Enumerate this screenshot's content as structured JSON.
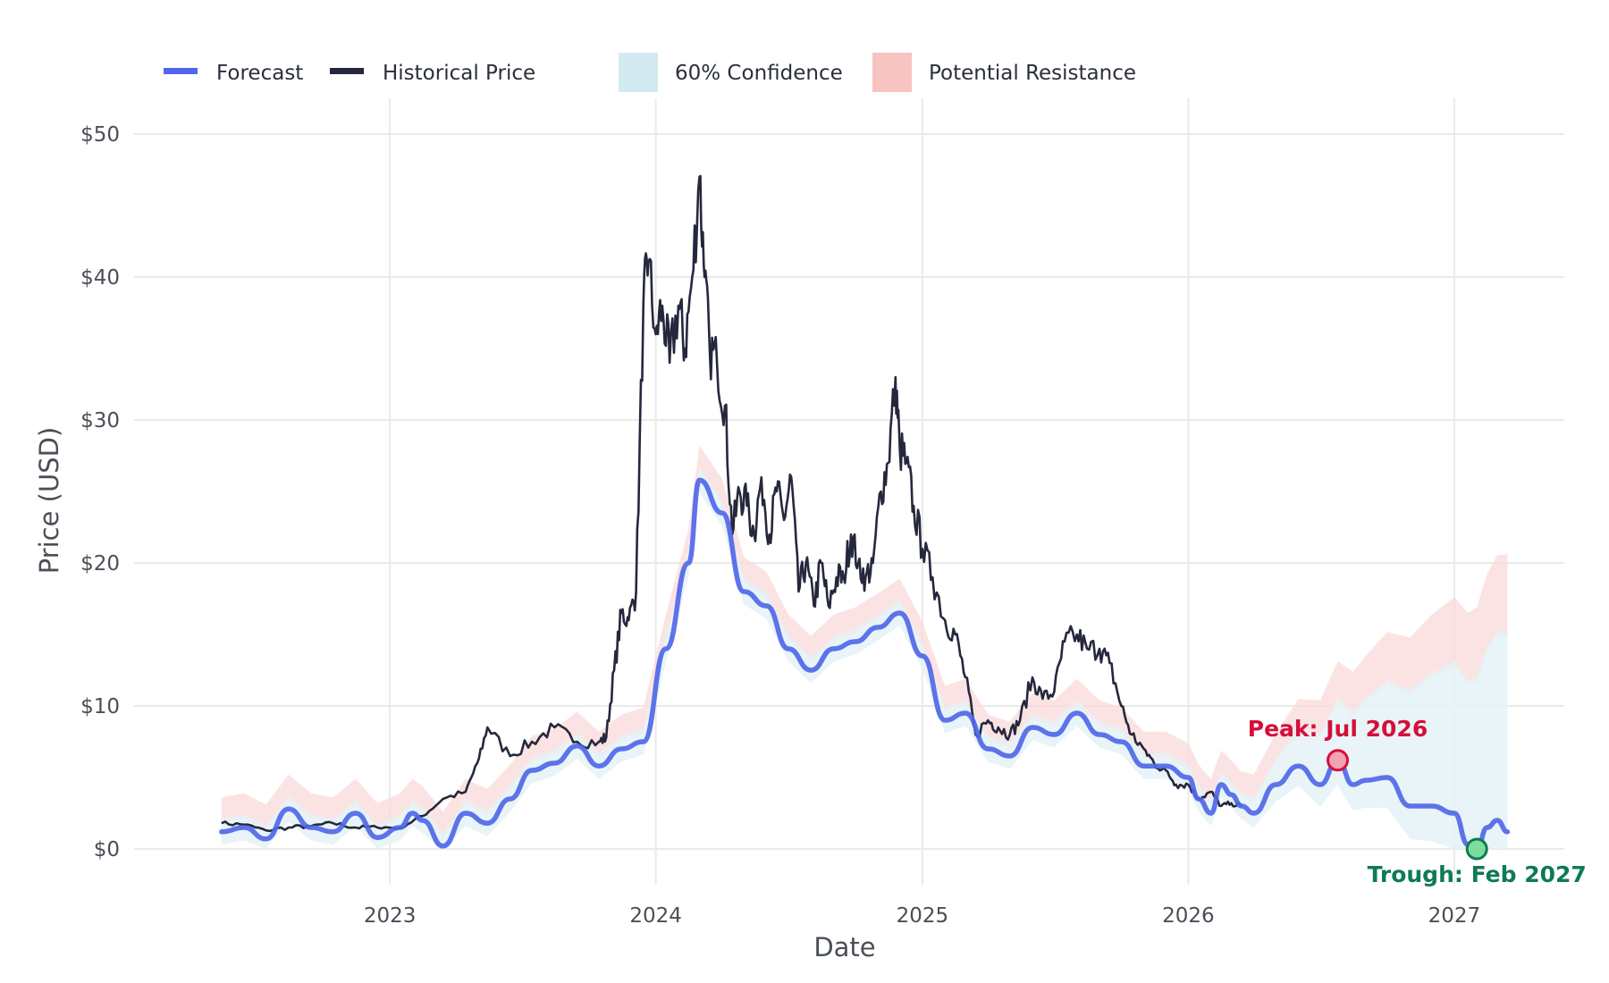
{
  "chart_data": {
    "type": "line",
    "title": "",
    "xlabel": "Date",
    "ylabel": "Price (USD)",
    "x_range": [
      "2022-01-15",
      "2027-06-01"
    ],
    "ylim": [
      -2.5,
      52.5
    ],
    "y_ticks": [
      0,
      10,
      20,
      30,
      40,
      50
    ],
    "y_tick_labels": [
      "$0",
      "$10",
      "$20",
      "$30",
      "$40",
      "$50"
    ],
    "x_ticks": [
      "2023-01-01",
      "2024-01-01",
      "2025-01-01",
      "2026-01-01",
      "2027-01-01"
    ],
    "x_tick_labels": [
      "2023",
      "2024",
      "2025",
      "2026",
      "2027"
    ],
    "grid": true,
    "legend_position": "top-left",
    "legend": [
      {
        "label": "Forecast",
        "kind": "line",
        "color": "#4f67e8"
      },
      {
        "label": "Historical Price",
        "kind": "line",
        "color": "#25283d"
      },
      {
        "label": "60% Confidence",
        "kind": "band",
        "color": "#d3e9f0"
      },
      {
        "label": "Potential Resistance",
        "kind": "band",
        "color": "#f7c4c2"
      }
    ],
    "colors": {
      "forecast": "#4f67e8",
      "historical": "#25283d",
      "confidence": "#e4f2f6",
      "resistance": "#fbdad9",
      "grid": "#eaeaea",
      "peak": "#d40f3a",
      "trough": "#0e7b53"
    },
    "series": [
      {
        "name": "Historical Price",
        "x": [
          "2022-05-15",
          "2022-06-15",
          "2022-07-15",
          "2022-08-15",
          "2022-09-15",
          "2022-10-15",
          "2022-11-15",
          "2022-12-15",
          "2023-01-15",
          "2023-02-15",
          "2023-03-15",
          "2023-04-15",
          "2023-05-01",
          "2023-05-15",
          "2023-06-15",
          "2023-07-15",
          "2023-08-15",
          "2023-09-15",
          "2023-10-15",
          "2023-10-25",
          "2023-11-05",
          "2023-11-15",
          "2023-11-25",
          "2023-12-05",
          "2023-12-15",
          "2023-12-22",
          "2024-01-01",
          "2024-01-10",
          "2024-01-20",
          "2024-02-01",
          "2024-02-10",
          "2024-02-20",
          "2024-03-01",
          "2024-03-08",
          "2024-03-15",
          "2024-03-25",
          "2024-04-05",
          "2024-04-15",
          "2024-04-25",
          "2024-05-05",
          "2024-05-15",
          "2024-05-25",
          "2024-06-05",
          "2024-06-15",
          "2024-06-25",
          "2024-07-05",
          "2024-07-15",
          "2024-07-25",
          "2024-08-05",
          "2024-08-15",
          "2024-08-25",
          "2024-09-05",
          "2024-09-15",
          "2024-09-25",
          "2024-10-05",
          "2024-10-15",
          "2024-10-25",
          "2024-11-05",
          "2024-11-15",
          "2024-11-25",
          "2024-12-01",
          "2024-12-10",
          "2024-12-20",
          "2025-01-01",
          "2025-01-15",
          "2025-02-01",
          "2025-02-15",
          "2025-03-01",
          "2025-03-15",
          "2025-04-01",
          "2025-04-15",
          "2025-05-01",
          "2025-05-15",
          "2025-06-01",
          "2025-06-15",
          "2025-07-01",
          "2025-07-15",
          "2025-08-01",
          "2025-08-15",
          "2025-09-01",
          "2025-09-15",
          "2025-10-01",
          "2025-10-15",
          "2025-11-01",
          "2025-11-15",
          "2025-12-01",
          "2025-12-15",
          "2026-01-01",
          "2026-01-15",
          "2026-02-01",
          "2026-02-15",
          "2026-03-01",
          "2026-03-15"
        ],
        "values": [
          1.8,
          1.7,
          1.3,
          1.5,
          1.6,
          1.8,
          1.5,
          1.5,
          1.5,
          2.3,
          3.5,
          4.0,
          6.0,
          8.5,
          6.5,
          7.5,
          8.5,
          7.5,
          7.5,
          7.8,
          12.5,
          16.5,
          16.0,
          18.0,
          38.0,
          41.0,
          36.0,
          38.0,
          34.0,
          38.0,
          35.0,
          40.0,
          47.0,
          40.0,
          35.0,
          34.0,
          31.0,
          22.0,
          25.0,
          24.0,
          22.0,
          26.0,
          22.0,
          25.0,
          23.0,
          26.0,
          18.0,
          20.0,
          17.0,
          20.0,
          17.0,
          19.0,
          19.0,
          22.0,
          20.0,
          19.0,
          20.0,
          25.0,
          27.0,
          33.0,
          28.0,
          27.0,
          24.0,
          21.0,
          19.0,
          16.0,
          15.0,
          12.0,
          8.0,
          9.0,
          8.5,
          8.0,
          9.0,
          12.0,
          10.5,
          11.0,
          14.5,
          15.0,
          14.0,
          14.0,
          13.0,
          10.0,
          8.0,
          7.0,
          6.0,
          5.5,
          4.5,
          4.5,
          3.5,
          4.0,
          3.0,
          3.2,
          3.0
        ]
      },
      {
        "name": "Forecast",
        "x": [
          "2022-05-15",
          "2022-06-15",
          "2022-07-15",
          "2022-08-15",
          "2022-09-15",
          "2022-10-15",
          "2022-11-15",
          "2022-12-15",
          "2023-01-15",
          "2023-02-01",
          "2023-02-15",
          "2023-03-15",
          "2023-04-15",
          "2023-05-15",
          "2023-06-15",
          "2023-07-15",
          "2023-08-15",
          "2023-09-15",
          "2023-10-15",
          "2023-11-15",
          "2023-12-15",
          "2024-01-15",
          "2024-02-15",
          "2024-03-01",
          "2024-04-01",
          "2024-05-01",
          "2024-06-01",
          "2024-07-01",
          "2024-08-01",
          "2024-09-01",
          "2024-10-01",
          "2024-11-01",
          "2024-12-01",
          "2025-01-01",
          "2025-02-01",
          "2025-03-01",
          "2025-04-01",
          "2025-05-01",
          "2025-06-01",
          "2025-07-01",
          "2025-08-01",
          "2025-09-01",
          "2025-10-01",
          "2025-11-01",
          "2025-12-01",
          "2026-01-01",
          "2026-01-15",
          "2026-02-01",
          "2026-02-15",
          "2026-03-01",
          "2026-03-15",
          "2026-04-01",
          "2026-05-01",
          "2026-06-01",
          "2026-07-01",
          "2026-07-25",
          "2026-08-15",
          "2026-09-01",
          "2026-10-01",
          "2026-11-01",
          "2026-12-01",
          "2027-01-01",
          "2027-01-20",
          "2027-02-01",
          "2027-02-15",
          "2027-03-01",
          "2027-03-15"
        ],
        "values": [
          1.2,
          1.5,
          0.7,
          2.8,
          1.5,
          1.2,
          2.5,
          0.8,
          1.5,
          2.5,
          2.0,
          0.2,
          2.5,
          1.8,
          3.5,
          5.5,
          6.0,
          7.2,
          5.8,
          7.0,
          7.5,
          14.0,
          20.0,
          25.8,
          23.5,
          18.0,
          17.0,
          14.0,
          12.5,
          14.0,
          14.5,
          15.5,
          16.5,
          13.5,
          9.0,
          9.5,
          7.0,
          6.5,
          8.5,
          8.0,
          9.5,
          8.0,
          7.5,
          5.8,
          5.8,
          5.0,
          3.5,
          2.5,
          4.5,
          3.8,
          3.0,
          2.5,
          4.5,
          5.8,
          4.5,
          6.2,
          4.5,
          4.8,
          5.0,
          3.0,
          3.0,
          2.5,
          0.3,
          0.0,
          1.5,
          2.0,
          1.2
        ]
      }
    ],
    "annotations": [
      {
        "text": "Peak: Jul 2026",
        "x": "2026-07-25",
        "y": 6.2,
        "kind": "peak"
      },
      {
        "text": "Trough: Feb 2027",
        "x": "2027-02-01",
        "y": 0.0,
        "kind": "trough"
      }
    ]
  }
}
